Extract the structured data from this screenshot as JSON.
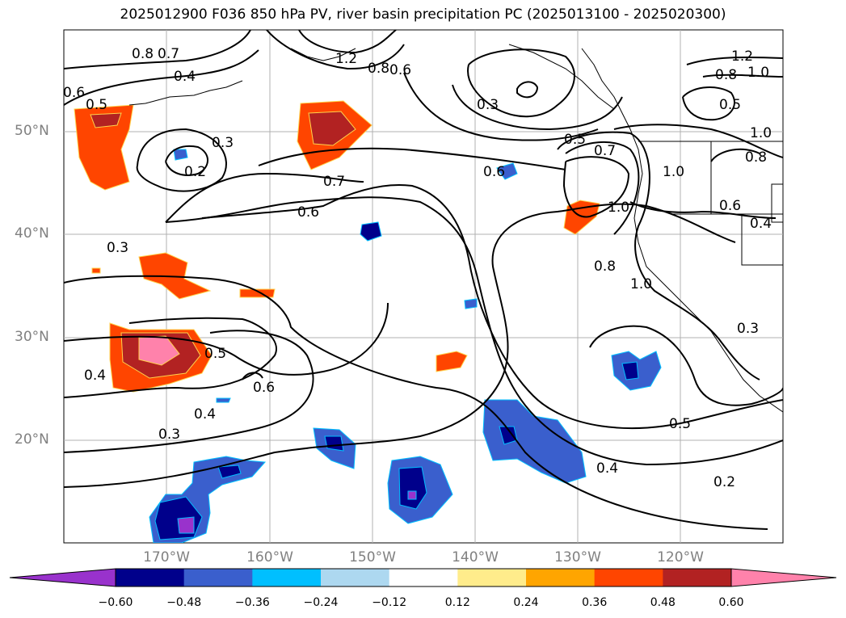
{
  "title": "2025012900 F036 850 hPa PV, river basin precipitation PC (2025013100 - 2025020300)",
  "lat_labels": [
    "50°N",
    "40°N",
    "30°N",
    "20°N"
  ],
  "lon_labels": [
    "170°W",
    "160°W",
    "150°W",
    "140°W",
    "130°W",
    "120°W"
  ],
  "contour_labels": [
    "0.8",
    "0.7",
    "0.4",
    "0.6",
    "0.5",
    "0.3",
    "0.2",
    "0.7",
    "0.6",
    "1.2",
    "0.8",
    "0.6",
    "0.3",
    "0.6",
    "0.5",
    "0.7",
    "1.0",
    "1.0",
    "0.8",
    "1.0",
    "1.2",
    "1.0",
    "0.8",
    "0.5",
    "1.0",
    "0.8",
    "0.6",
    "0.4",
    "0.3",
    "0.5",
    "0.6",
    "0.4",
    "0.3",
    "0.4",
    "0.5",
    "0.4",
    "0.2",
    "0.3"
  ],
  "colorbar": {
    "colors": [
      "#9932cc",
      "#00008b",
      "#3a5fcd",
      "#00bfff",
      "#add8f0",
      "#ffffff",
      "#ffec8b",
      "#ffa500",
      "#ff4500",
      "#b22222",
      "#ff82ab"
    ],
    "tick_labels": [
      "−0.60",
      "−0.48",
      "−0.36",
      "−0.24",
      "−0.12",
      "0.12",
      "0.24",
      "0.36",
      "0.48",
      "0.60"
    ]
  }
}
